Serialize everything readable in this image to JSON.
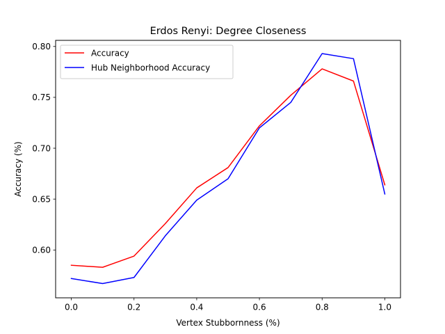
{
  "chart_data": {
    "type": "line",
    "title": "Erdos Renyi: Degree Closeness",
    "xlabel": "Vertex Stubbornness (%)",
    "ylabel": "Accuracy (%)",
    "xlim": [
      -0.05,
      1.05
    ],
    "ylim": [
      0.553,
      0.806
    ],
    "xticks": [
      "0.0",
      "0.2",
      "0.4",
      "0.6",
      "0.8",
      "1.0"
    ],
    "yticks": [
      "0.60",
      "0.65",
      "0.70",
      "0.75",
      "0.80"
    ],
    "grid": false,
    "legend_position": "upper-left",
    "x": [
      0.0,
      0.1,
      0.2,
      0.3,
      0.4,
      0.5,
      0.6,
      0.7,
      0.8,
      0.9,
      1.0
    ],
    "series": [
      {
        "name": "Accuracy",
        "color": "#ff0000",
        "values": [
          0.585,
          0.583,
          0.594,
          0.626,
          0.661,
          0.681,
          0.722,
          0.752,
          0.778,
          0.766,
          0.664
        ]
      },
      {
        "name": "Hub Neighborhood Accuracy",
        "color": "#0000ff",
        "values": [
          0.572,
          0.567,
          0.573,
          0.614,
          0.649,
          0.67,
          0.72,
          0.745,
          0.793,
          0.788,
          0.655
        ]
      }
    ]
  }
}
